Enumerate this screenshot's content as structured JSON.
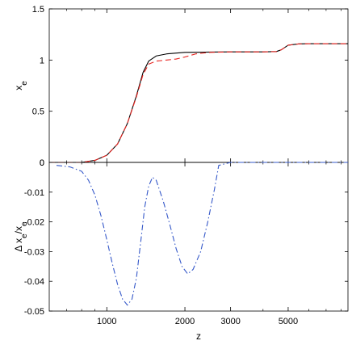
{
  "chart_data": [
    {
      "type": "line",
      "panel": "top",
      "xscale": "log",
      "xlim": [
        600,
        8500
      ],
      "ylim": [
        0,
        1.5
      ],
      "yticks": [
        0,
        0.5,
        1,
        1.5
      ],
      "ytick_labels": [
        "0",
        "0.5",
        "1",
        "1.5"
      ],
      "ylabel": "x",
      "ylabel_sub": "e",
      "grid": false,
      "series": [
        {
          "color": "#000000",
          "dash": "solid",
          "x": [
            600,
            800,
            900,
            1000,
            1100,
            1200,
            1300,
            1380,
            1450,
            1550,
            1700,
            2000,
            2500,
            3000,
            4000,
            4500,
            4700,
            5000,
            5500,
            6000,
            8500
          ],
          "y": [
            0.0,
            0.0,
            0.02,
            0.07,
            0.18,
            0.38,
            0.65,
            0.88,
            0.99,
            1.04,
            1.06,
            1.075,
            1.078,
            1.08,
            1.08,
            1.083,
            1.1,
            1.145,
            1.158,
            1.16,
            1.16
          ]
        },
        {
          "color": "#e8231f",
          "dash": "dashed",
          "x": [
            600,
            800,
            900,
            1000,
            1100,
            1200,
            1300,
            1380,
            1450,
            1550,
            1700,
            1850,
            2000,
            2200,
            2500,
            3000,
            4000,
            4500,
            4700,
            5000,
            5500,
            6000,
            8500
          ],
          "y": [
            0.0,
            0.0,
            0.02,
            0.07,
            0.18,
            0.38,
            0.64,
            0.86,
            0.96,
            0.99,
            1.0,
            1.01,
            1.03,
            1.06,
            1.075,
            1.08,
            1.08,
            1.083,
            1.1,
            1.145,
            1.158,
            1.16,
            1.16
          ]
        }
      ]
    },
    {
      "type": "line",
      "panel": "bottom",
      "xscale": "log",
      "xlim": [
        600,
        8500
      ],
      "ylim": [
        -0.05,
        0
      ],
      "yticks": [
        -0.05,
        -0.04,
        -0.03,
        -0.02,
        -0.01,
        0
      ],
      "ytick_labels": [
        "-0.05",
        "-0.04",
        "-0.03",
        "-0.02",
        "-0.01",
        "0"
      ],
      "xticks": [
        1000,
        2000,
        3000,
        5000
      ],
      "xtick_labels": [
        "1000",
        "2000",
        "3000",
        "5000"
      ],
      "xlabel": "z",
      "ylabel": "Δ x",
      "ylabel_sub": "e",
      "ylabel_rest": "/x",
      "ylabel_sub2": "e",
      "grid": false,
      "series": [
        {
          "color": "#3558c9",
          "dash": "dashdot",
          "x": [
            640,
            720,
            800,
            850,
            900,
            950,
            1000,
            1050,
            1100,
            1150,
            1200,
            1250,
            1300,
            1350,
            1400,
            1450,
            1500,
            1550,
            1650,
            1750,
            1850,
            1950,
            2050,
            2150,
            2300,
            2450,
            2600,
            2700,
            3000,
            4000,
            6000,
            8500
          ],
          "y": [
            -0.001,
            -0.0015,
            -0.003,
            -0.006,
            -0.011,
            -0.018,
            -0.026,
            -0.034,
            -0.041,
            -0.046,
            -0.048,
            -0.046,
            -0.039,
            -0.027,
            -0.015,
            -0.008,
            -0.005,
            -0.006,
            -0.013,
            -0.021,
            -0.029,
            -0.035,
            -0.0375,
            -0.036,
            -0.03,
            -0.02,
            -0.009,
            -0.001,
            0.0,
            0.0,
            0.0,
            0.0
          ]
        }
      ]
    }
  ]
}
